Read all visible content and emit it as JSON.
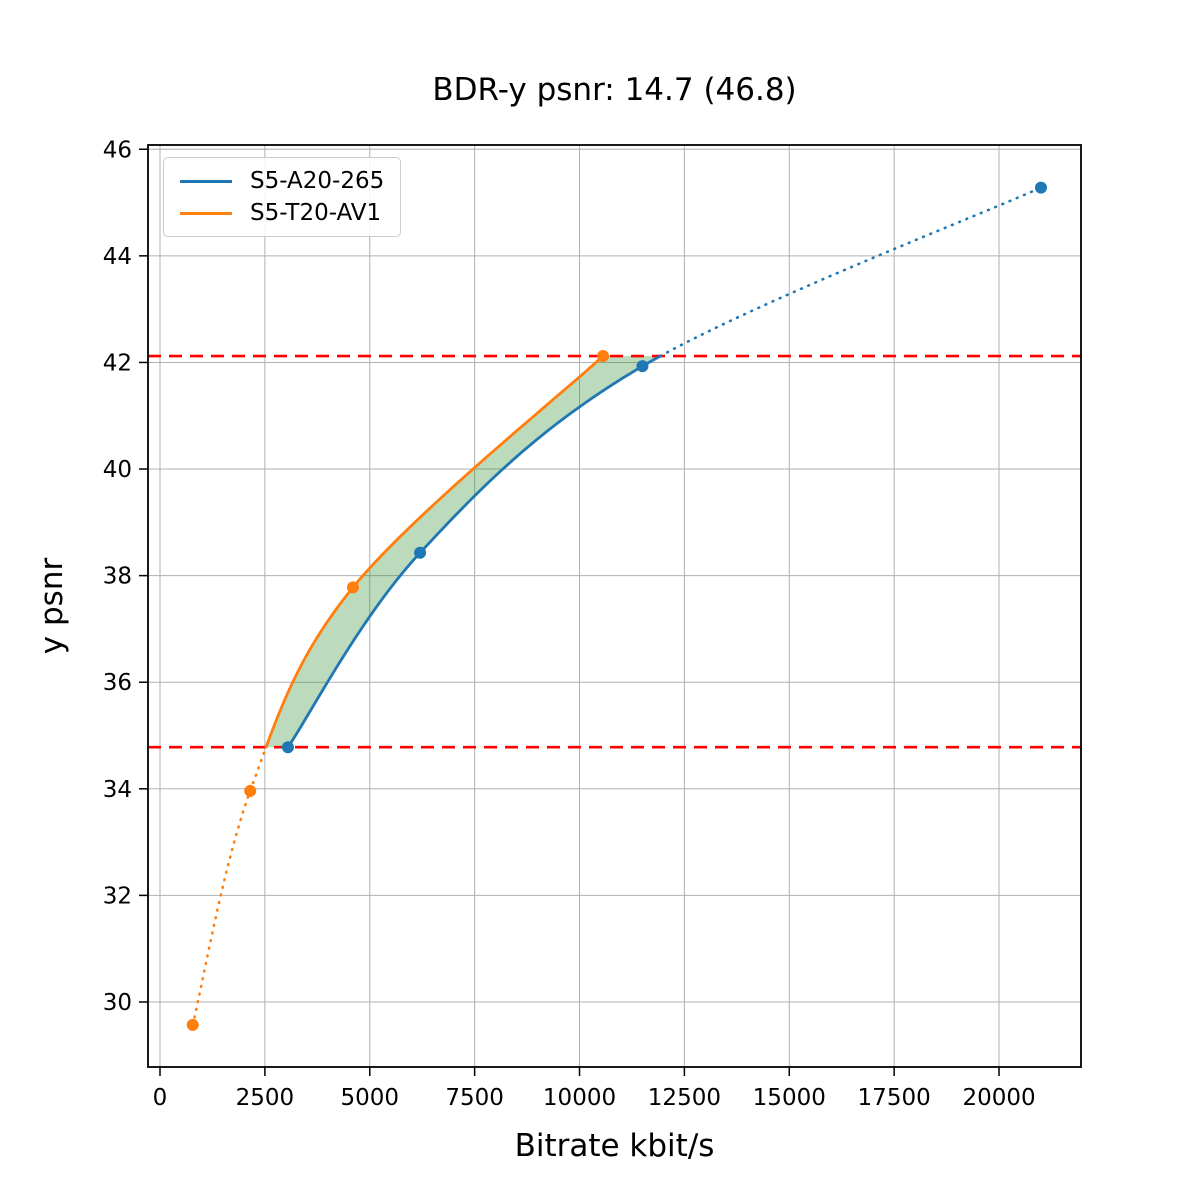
{
  "figure": {
    "title": "BDR-y psnr: 14.7 (46.8)",
    "xlabel": "Bitrate kbit/s",
    "ylabel": "y psnr"
  },
  "chart_data": {
    "type": "line",
    "title": "BDR-y psnr: 14.7 (46.8)",
    "xlabel": "Bitrate kbit/s",
    "ylabel": "y psnr",
    "xlim": [
      -286,
      21954
    ],
    "ylim": [
      28.78,
      46.08
    ],
    "x_ticks": [
      0,
      2500,
      5000,
      7500,
      10000,
      12500,
      15000,
      17500,
      20000
    ],
    "y_ticks": [
      30,
      32,
      34,
      36,
      38,
      40,
      42,
      44,
      46
    ],
    "grid": true,
    "grid_color": "#b0b0b0",
    "legend_position": "upper-left",
    "series": [
      {
        "name": "S5-A20-265",
        "color": "#1f77b4",
        "points": [
          [
            3050,
            34.78
          ],
          [
            6200,
            38.43
          ],
          [
            11500,
            41.93
          ],
          [
            21000,
            45.28
          ]
        ],
        "solid_style": "interpolated inside overlap, dotted above upper bound"
      },
      {
        "name": "S5-T20-AV1",
        "color": "#ff7f0e",
        "points": [
          [
            780,
            29.57
          ],
          [
            2150,
            33.96
          ],
          [
            4600,
            37.78
          ],
          [
            10560,
            42.12
          ]
        ],
        "solid_style": "interpolated inside overlap, dotted below lower bound"
      }
    ],
    "overlap_bounds": {
      "lower_psnr": 34.78,
      "upper_psnr": 42.12,
      "line_color": "#ff0000",
      "line_style": "dashed"
    },
    "fill_between": {
      "color": "#2e8b2e",
      "alpha": 0.32,
      "between": [
        "S5-T20-AV1",
        "S5-A20-265"
      ],
      "y_range": [
        34.78,
        42.12
      ]
    }
  },
  "legend": {
    "items": [
      {
        "label": "S5-A20-265",
        "color": "#1f77b4"
      },
      {
        "label": "S5-T20-AV1",
        "color": "#ff7f0e"
      }
    ]
  }
}
